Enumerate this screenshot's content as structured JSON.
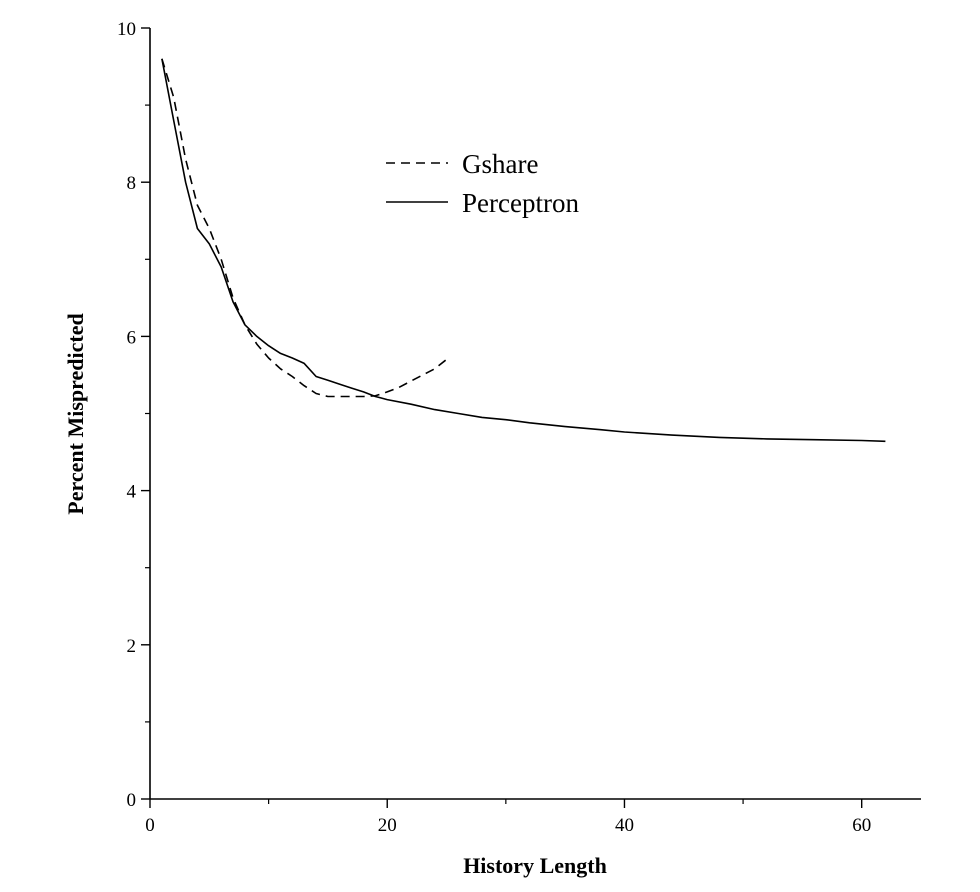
{
  "chart_data": {
    "type": "line",
    "title": "",
    "xlabel": "History Length",
    "ylabel": "Percent Mispredicted",
    "xlim": [
      0,
      65
    ],
    "ylim": [
      0,
      10
    ],
    "x_ticks": [
      0,
      20,
      40,
      60
    ],
    "x_tick_labels": [
      "0",
      "20",
      "40",
      "60"
    ],
    "y_ticks": [
      0,
      2,
      4,
      6,
      8,
      10
    ],
    "y_tick_labels": [
      "0",
      "2",
      "4",
      "6",
      "8",
      "10"
    ],
    "grid": false,
    "legend_position": "top-center",
    "series": [
      {
        "name": "Gshare",
        "style": "dashed",
        "color": "#000000",
        "x": [
          1,
          2,
          3,
          4,
          5,
          6,
          7,
          8,
          9,
          10,
          11,
          12,
          13,
          14,
          15,
          16,
          17,
          18,
          19,
          20,
          21,
          22,
          23,
          24,
          25
        ],
        "y": [
          9.6,
          9.1,
          8.3,
          7.7,
          7.4,
          7.0,
          6.5,
          6.15,
          5.9,
          5.72,
          5.58,
          5.48,
          5.36,
          5.26,
          5.22,
          5.22,
          5.22,
          5.22,
          5.23,
          5.28,
          5.34,
          5.42,
          5.5,
          5.58,
          5.7
        ]
      },
      {
        "name": "Perceptron",
        "style": "solid",
        "color": "#000000",
        "x": [
          1,
          2,
          3,
          4,
          5,
          6,
          7,
          8,
          9,
          10,
          11,
          12,
          13,
          14,
          15,
          16,
          17,
          18,
          19,
          20,
          22,
          24,
          26,
          28,
          30,
          32,
          35,
          38,
          40,
          44,
          48,
          52,
          56,
          60,
          62
        ],
        "y": [
          9.6,
          8.8,
          8.0,
          7.4,
          7.2,
          6.9,
          6.45,
          6.15,
          6.0,
          5.88,
          5.78,
          5.72,
          5.65,
          5.48,
          5.43,
          5.38,
          5.33,
          5.28,
          5.22,
          5.18,
          5.12,
          5.05,
          5.0,
          4.95,
          4.92,
          4.88,
          4.83,
          4.79,
          4.76,
          4.72,
          4.69,
          4.67,
          4.66,
          4.65,
          4.64
        ]
      }
    ]
  }
}
